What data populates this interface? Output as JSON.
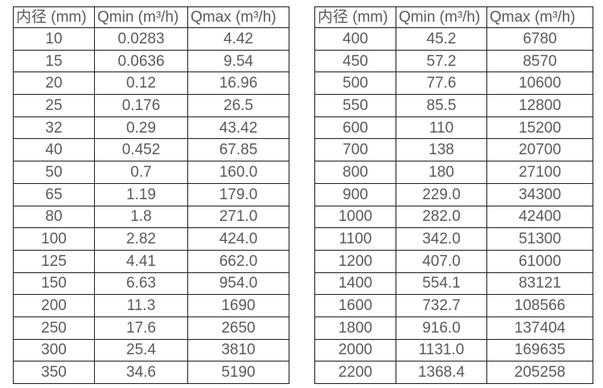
{
  "colors": {
    "background": "#ffffff",
    "border": "#1e1e1e",
    "text": "#5a5a5a"
  },
  "tables": [
    {
      "name": "flow-table-small-diameters",
      "headers": [
        "内径 (mm)",
        "Qmin (m³/h)",
        "Qmax (m³/h)"
      ],
      "rows": [
        [
          "10",
          "0.0283",
          "4.42"
        ],
        [
          "15",
          "0.0636",
          "9.54"
        ],
        [
          "20",
          "0.12",
          "16.96"
        ],
        [
          "25",
          "0.176",
          "26.5"
        ],
        [
          "32",
          "0.29",
          "43.42"
        ],
        [
          "40",
          "0.452",
          "67.85"
        ],
        [
          "50",
          "0.7",
          "160.0"
        ],
        [
          "65",
          "1.19",
          "179.0"
        ],
        [
          "80",
          "1.8",
          "271.0"
        ],
        [
          "100",
          "2.82",
          "424.0"
        ],
        [
          "125",
          "4.41",
          "662.0"
        ],
        [
          "150",
          "6.63",
          "954.0"
        ],
        [
          "200",
          "11.3",
          "1690"
        ],
        [
          "250",
          "17.6",
          "2650"
        ],
        [
          "300",
          "25.4",
          "3810"
        ],
        [
          "350",
          "34.6",
          "5190"
        ]
      ]
    },
    {
      "name": "flow-table-large-diameters",
      "headers": [
        "内径 (mm)",
        "Qmin (m³/h)",
        "Qmax (m³/h)"
      ],
      "rows": [
        [
          "400",
          "45.2",
          "6780"
        ],
        [
          "450",
          "57.2",
          "8570"
        ],
        [
          "500",
          "77.6",
          "10600"
        ],
        [
          "550",
          "85.5",
          "12800"
        ],
        [
          "600",
          "110",
          "15200"
        ],
        [
          "700",
          "138",
          "20700"
        ],
        [
          "800",
          "180",
          "27100"
        ],
        [
          "900",
          "229.0",
          "34300"
        ],
        [
          "1000",
          "282.0",
          "42400"
        ],
        [
          "1100",
          "342.0",
          "51300"
        ],
        [
          "1200",
          "407.0",
          "61000"
        ],
        [
          "1400",
          "554.1",
          "83121"
        ],
        [
          "1600",
          "732.7",
          "108566"
        ],
        [
          "1800",
          "916.0",
          "137404"
        ],
        [
          "2000",
          "1131.0",
          "169635"
        ],
        [
          "2200",
          "1368.4",
          "205258"
        ]
      ]
    }
  ]
}
